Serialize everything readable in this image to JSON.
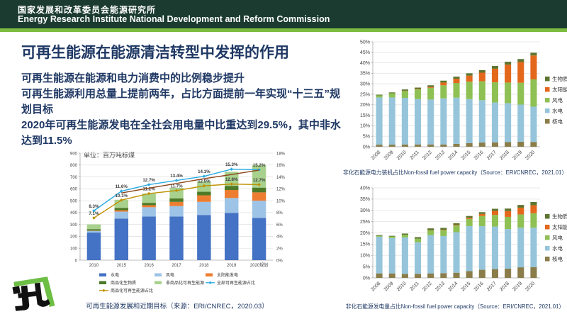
{
  "header": {
    "title_zh": "国家发展和改革委员会能源研究所",
    "title_en": "Energy Research Institute National Development and Reform Commission"
  },
  "slide": {
    "title": "可再生能源在能源清洁转型中发挥的作用",
    "bullets": [
      "可再生能源在能源和电力消费中的比例稳步提升",
      "可再生能源利用总量上提前两年，占比方面提前一年实现“十三五”规划目标",
      "2020年可再生能源发电在全社会用电量中比重达到29.5%，其中非水达到11.5%"
    ]
  },
  "colors": {
    "header_bg": "#1b3b31",
    "accent_stripe": "#7cbb3f",
    "text_navy": "#1f3864",
    "grid": "#e3e3e3"
  },
  "chart_data": [
    {
      "id": "renewable-development",
      "type": "bar",
      "subtype": "stacked-bar-with-lines",
      "unit_label": "单位：百万吨标煤",
      "caption": "可再生能源发展和近期目标（来源：ERI/CNREC，2020.03）",
      "categories": [
        "2010",
        "2015",
        "2016",
        "2017",
        "2018",
        "2019",
        "2020规划"
      ],
      "bar_series": [
        {
          "name": "水电",
          "slug": "hydro",
          "color": "#4472C4",
          "values": [
            232,
            350,
            367,
            367,
            380,
            398,
            355
          ]
        },
        {
          "name": "风电",
          "slug": "wind",
          "color": "#9DC3E6",
          "values": [
            14,
            58,
            78,
            88,
            110,
            125,
            145
          ]
        },
        {
          "name": "太阳能发电",
          "slug": "solar",
          "color": "#ED7D31",
          "values": [
            2,
            12,
            17,
            35,
            55,
            67,
            70
          ]
        },
        {
          "name": "商品化生物质",
          "slug": "commercial-biomass",
          "color": "#4E7A27",
          "values": [
            13,
            20,
            20,
            30,
            30,
            35,
            40
          ]
        },
        {
          "name": "非商品化可再生能源",
          "slug": "non-commercial-renewables",
          "color": "#A9D18E",
          "values": [
            40,
            68,
            78,
            88,
            88,
            118,
            190
          ]
        }
      ],
      "line_series": [
        {
          "name": "全部可再生能源占比",
          "slug": "total-renewables-share",
          "color": "#29ABE2",
          "axis": "right",
          "labels": true,
          "values": [
            8.3,
            11.6,
            12.7,
            13.4,
            14.1,
            15.3,
            15.2
          ]
        },
        {
          "name": "商品化可再生能源占比",
          "slug": "commercial-renewables-share",
          "color": "#BF9000",
          "axis": "right",
          "labels": true,
          "values": [
            7.1,
            10.1,
            11.2,
            11.7,
            12.5,
            12.8,
            12.7
          ]
        },
        {
          "name": "目标趋势线",
          "slug": "target-trend",
          "color": "#8C4318",
          "axis": "right",
          "labels": false,
          "legend": false,
          "values": [
            null,
            11.3,
            12.1,
            12.9,
            13.7,
            14.4,
            15.15
          ]
        }
      ],
      "y_axis": {
        "min": 0,
        "max": 900,
        "step": 100,
        "suffix": ""
      },
      "right_axis": {
        "min": 0,
        "max": 18,
        "step": 2,
        "suffix": "%"
      },
      "legend_position": "bottom",
      "grid": true
    },
    {
      "id": "capacity-share",
      "type": "bar",
      "subtype": "stacked-bar",
      "caption": "非化石能源电力装机占比Non-fossil fuel power capacity（Source：ERI/CNREC，2021.01）",
      "categories": [
        "2008",
        "2009",
        "2010",
        "2011",
        "2012",
        "2013",
        "2014",
        "2015",
        "2016",
        "2017",
        "2018",
        "2019",
        "2020"
      ],
      "bar_series": [
        {
          "name": "核电",
          "slug": "nuclear",
          "color": "#8A7D4A",
          "values": [
            1.0,
            1.0,
            1.1,
            1.1,
            1.1,
            1.1,
            1.4,
            1.7,
            2.0,
            2.1,
            2.2,
            2.4,
            2.3
          ]
        },
        {
          "name": "水电",
          "slug": "hydro",
          "color": "#96C5DB",
          "values": [
            22.5,
            22.5,
            22.2,
            21.6,
            21.4,
            22.0,
            22.0,
            21.0,
            20.2,
            19.0,
            18.6,
            17.7,
            16.8
          ]
        },
        {
          "name": "风电",
          "slug": "wind",
          "color": "#8EC054",
          "values": [
            1.0,
            2.0,
            3.3,
            4.6,
            5.6,
            6.2,
            7.0,
            8.3,
            9.0,
            9.6,
            9.8,
            10.4,
            13.0
          ]
        },
        {
          "name": "太阳能",
          "slug": "solar",
          "color": "#E3681C",
          "values": [
            0.0,
            0.0,
            0.1,
            0.2,
            0.4,
            1.3,
            2.0,
            2.9,
            4.1,
            6.5,
            8.5,
            9.9,
            11.4
          ]
        },
        {
          "name": "生物质",
          "slug": "biomass",
          "color": "#5E7530",
          "values": [
            0.3,
            0.4,
            0.6,
            0.7,
            0.8,
            0.9,
            1.0,
            1.1,
            1.2,
            1.3,
            1.4,
            1.4,
            1.3
          ]
        }
      ],
      "y_axis": {
        "min": 0,
        "max": 50,
        "step": 5,
        "suffix": "%"
      },
      "legend_position": "right",
      "legend_order": [
        "生物质",
        "太阳能",
        "风电",
        "水电",
        "核电"
      ],
      "grid": true
    },
    {
      "id": "generation-share",
      "type": "bar",
      "subtype": "stacked-bar",
      "caption": "非化石能源发电量占比Non-fossil fuel power capacity（Source：ERI/CNREC，2021.01）",
      "categories": [
        "2008",
        "2009",
        "2010",
        "2011",
        "2012",
        "2013",
        "2014",
        "2015",
        "2016",
        "2017",
        "2018",
        "2019",
        "2020"
      ],
      "bar_series": [
        {
          "name": "核电",
          "slug": "nuclear",
          "color": "#8A7D4A",
          "values": [
            2.0,
            2.0,
            1.8,
            1.8,
            2.0,
            2.1,
            2.3,
            3.0,
            3.6,
            3.9,
            4.1,
            4.7,
            4.8
          ]
        },
        {
          "name": "水电",
          "slug": "hydro",
          "color": "#96C5DB",
          "values": [
            16.3,
            15.7,
            16.2,
            14.0,
            17.0,
            16.5,
            18.0,
            20.0,
            19.4,
            18.9,
            17.6,
            17.6,
            17.5
          ]
        },
        {
          "name": "风电",
          "slug": "wind",
          "color": "#8EC054",
          "values": [
            0.4,
            0.7,
            1.2,
            1.6,
            2.1,
            2.6,
            3.0,
            3.2,
            4.5,
            5.2,
            5.4,
            5.9,
            6.4
          ]
        },
        {
          "name": "太阳能",
          "slug": "solar",
          "color": "#E3681C",
          "values": [
            0.0,
            0.0,
            0.0,
            0.0,
            0.1,
            0.2,
            0.3,
            0.5,
            0.9,
            1.8,
            2.6,
            3.0,
            3.6
          ]
        },
        {
          "name": "生物质",
          "slug": "biomass",
          "color": "#5E7530",
          "values": [
            0.3,
            0.3,
            0.5,
            0.7,
            0.8,
            0.8,
            0.7,
            0.8,
            0.8,
            0.9,
            1.1,
            1.2,
            1.4
          ]
        }
      ],
      "y_axis": {
        "min": 0,
        "max": 40,
        "step": 5,
        "suffix": "%"
      },
      "legend_position": "right",
      "legend_order": [
        "生物质",
        "太阳能",
        "风电",
        "水电",
        "核电"
      ],
      "grid": true
    }
  ]
}
